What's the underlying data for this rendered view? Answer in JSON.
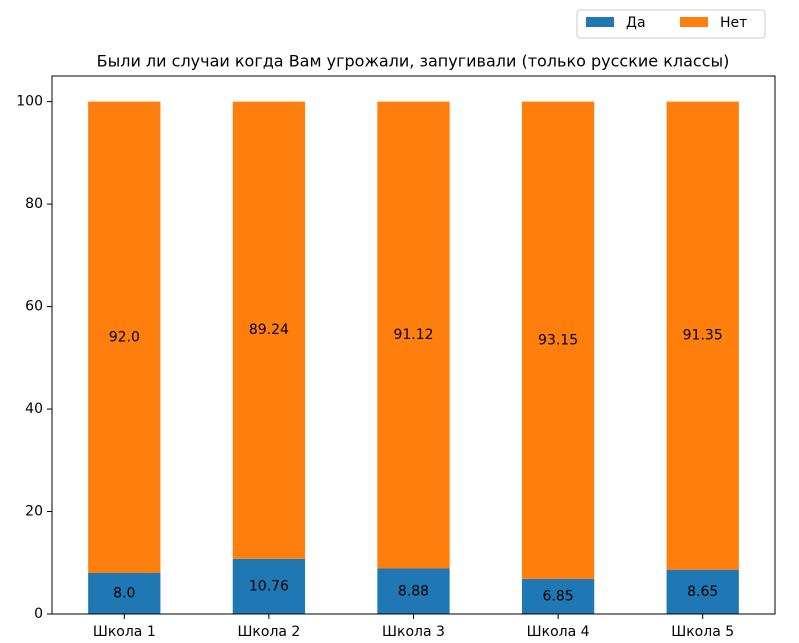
{
  "chart_data": {
    "type": "stacked_bar",
    "title": "Были ли случаи когда Вам угрожали, запугивали (только русские классы)",
    "categories": [
      "Школа 1",
      "Школа 2",
      "Школа 3",
      "Школа 4",
      "Школа 5"
    ],
    "series": [
      {
        "name": "Да",
        "color": "#1f77b4",
        "values": [
          8.0,
          10.76,
          8.88,
          6.85,
          8.65
        ],
        "value_labels": [
          "8.0",
          "10.76",
          "8.88",
          "6.85",
          "8.65"
        ]
      },
      {
        "name": "Нет",
        "color": "#ff7f0e",
        "values": [
          92.0,
          89.24,
          91.12,
          93.15,
          91.35
        ],
        "value_labels": [
          "92.0",
          "89.24",
          "91.12",
          "93.15",
          "91.35"
        ]
      }
    ],
    "ylim": [
      0,
      105
    ],
    "yticks": [
      0,
      20,
      40,
      60,
      80,
      100
    ],
    "legend": "upper right"
  }
}
